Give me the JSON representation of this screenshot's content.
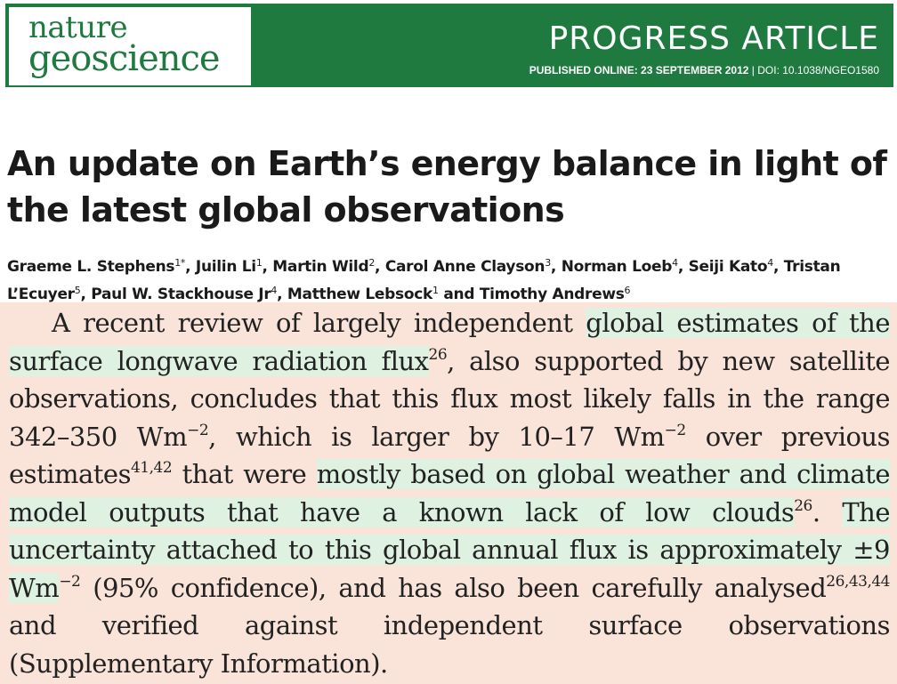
{
  "journal": {
    "logo_line1": "nature",
    "logo_line2": "geoscience",
    "article_type": "PROGRESS ARTICLE",
    "published": "PUBLISHED ONLINE: 23 SEPTEMBER 2012",
    "separator": " | ",
    "doi": "DOI: 10.1038/NGEO1580"
  },
  "article": {
    "title": "An update on Earth’s energy balance in light of the latest global observations",
    "authors": [
      {
        "name": "Graeme L. Stephens",
        "sup": "1*",
        "sep": ", "
      },
      {
        "name": "Juilin Li",
        "sup": "1",
        "sep": ", "
      },
      {
        "name": "Martin Wild",
        "sup": "2",
        "sep": ", "
      },
      {
        "name": "Carol Anne Clayson",
        "sup": "3",
        "sep": ", "
      },
      {
        "name": "Norman Loeb",
        "sup": "4",
        "sep": ", "
      },
      {
        "name": "Seiji Kato",
        "sup": "4",
        "sep": ", "
      },
      {
        "name": "Tristan L’Ecuyer",
        "sup": "5",
        "sep": ", "
      },
      {
        "name": "Paul W. Stackhouse Jr",
        "sup": "4",
        "sep": ", "
      },
      {
        "name": "Matthew Lebsock",
        "sup": "1",
        "sep": " and "
      },
      {
        "name": "Timothy Andrews",
        "sup": "6",
        "sep": ""
      }
    ]
  },
  "excerpt": {
    "s1": "A recent review of largely independent ",
    "h1": "global estimates of the surface longwave radiation flux",
    "r1": "26",
    "s2": ", also supported by new satellite observations, concludes that this flux most likely falls in the range 342–350 Wm",
    "e1": "−2",
    "s3": ", which is larger by 10–17 Wm",
    "e2": "−2",
    "s4": " over previous estimates",
    "r2": "41,42",
    "s5": " that were ",
    "h2": "mostly based on global weather and climate model outputs that have a known lack of low clouds",
    "r3": "26",
    "s6": ". ",
    "h3": "The uncertainty attached to this global annual flux is approximately ±9 Wm",
    "e3": "−2",
    "s7": " (95% confidence), and has also been carefully analysed",
    "r4": "26,43,44",
    "s8": " and verified against independent surface observations (Supplementary Information)."
  }
}
